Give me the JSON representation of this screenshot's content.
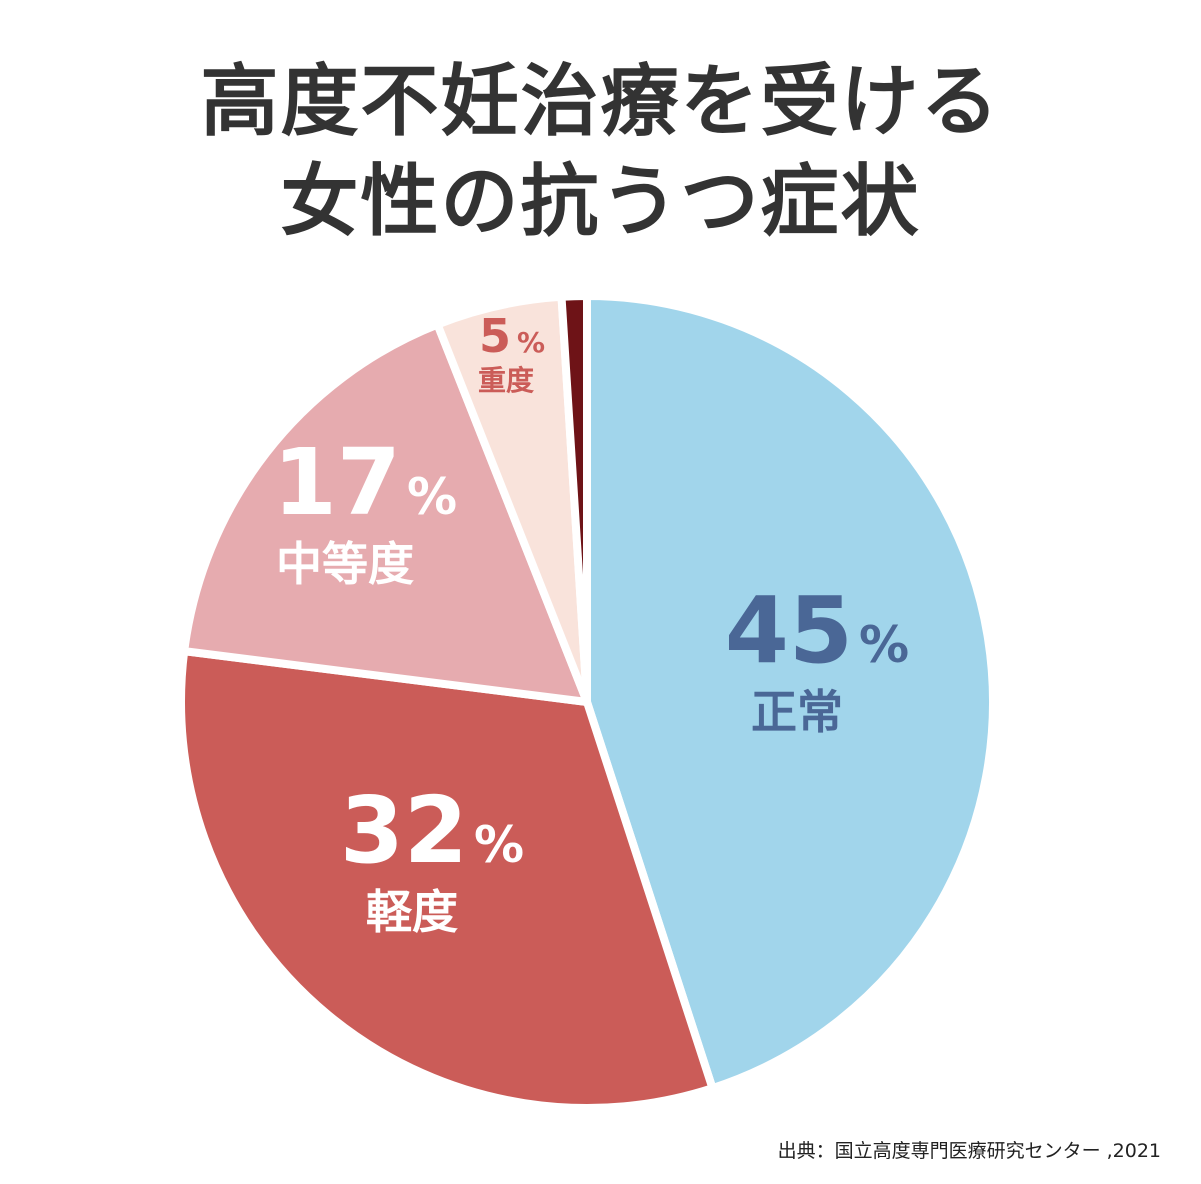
{
  "title_lines": [
    "高度不妊治療を受ける",
    "女性の抗うつ症状"
  ],
  "source": "出典：国立高度専門医療研究センター ,2021",
  "chart_data": {
    "type": "pie",
    "title": "高度不妊治療を受ける女性の抗うつ症状",
    "start": "12 o'clock, clockwise",
    "slices": [
      {
        "label": "正常",
        "value": 45,
        "color": "#a1d5eb",
        "text_color": "#4a6796"
      },
      {
        "label": "軽度",
        "value": 32,
        "color": "#cb5c58",
        "text_color": "#ffffff"
      },
      {
        "label": "中等度",
        "value": 17,
        "color": "#e6abaf",
        "text_color": "#ffffff"
      },
      {
        "label": "重度",
        "value": 5,
        "color": "#f9e3db",
        "text_color": "#cb5c58"
      },
      {
        "label": "",
        "value": 1,
        "color": "#6e1317",
        "text_color": "#6e1317"
      }
    ],
    "value_suffix": "%"
  }
}
